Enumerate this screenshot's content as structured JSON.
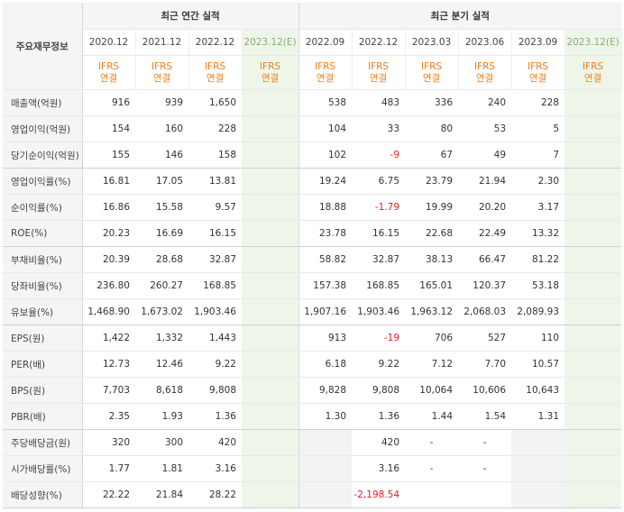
{
  "header": {
    "row_label": "주요재무정보",
    "annual_title": "최근 연간 실적",
    "quarterly_title": "최근 분기 실적",
    "annual_periods": [
      "2020.12",
      "2021.12",
      "2022.12",
      "2023.12(E)"
    ],
    "quarterly_periods": [
      "2022.09",
      "2022.12",
      "2023.03",
      "2023.06",
      "2023.09",
      "2023.12(E)"
    ],
    "ifrs_line1": "IFRS",
    "ifrs_line2": "연결"
  },
  "rows": [
    {
      "label": "매출액(억원)",
      "annual": [
        "916",
        "939",
        "1,650",
        ""
      ],
      "quarterly": [
        "538",
        "483",
        "336",
        "240",
        "228",
        ""
      ]
    },
    {
      "label": "영업이익(억원)",
      "annual": [
        "154",
        "160",
        "228",
        ""
      ],
      "quarterly": [
        "104",
        "33",
        "80",
        "53",
        "5",
        ""
      ]
    },
    {
      "label": "당기순이익(억원)",
      "annual": [
        "155",
        "146",
        "158",
        ""
      ],
      "quarterly": [
        "102",
        "-9",
        "67",
        "49",
        "7",
        ""
      ]
    },
    {
      "label": "영업이익률(%)",
      "annual": [
        "16.81",
        "17.05",
        "13.81",
        ""
      ],
      "quarterly": [
        "19.24",
        "6.75",
        "23.79",
        "21.94",
        "2.30",
        ""
      ]
    },
    {
      "label": "순이익률(%)",
      "annual": [
        "16.86",
        "15.58",
        "9.57",
        ""
      ],
      "quarterly": [
        "18.88",
        "-1.79",
        "19.99",
        "20.20",
        "3.17",
        ""
      ]
    },
    {
      "label": "ROE(%)",
      "annual": [
        "20.23",
        "16.69",
        "16.15",
        ""
      ],
      "quarterly": [
        "23.78",
        "16.15",
        "22.68",
        "22.49",
        "13.32",
        ""
      ]
    },
    {
      "label": "부채비율(%)",
      "annual": [
        "20.39",
        "28.68",
        "32.87",
        ""
      ],
      "quarterly": [
        "58.82",
        "32.87",
        "38.13",
        "66.47",
        "81.22",
        ""
      ]
    },
    {
      "label": "당좌비율(%)",
      "annual": [
        "236.80",
        "260.27",
        "168.85",
        ""
      ],
      "quarterly": [
        "157.38",
        "168.85",
        "165.01",
        "120.37",
        "53.18",
        ""
      ]
    },
    {
      "label": "유보율(%)",
      "annual": [
        "1,468.90",
        "1,673.02",
        "1,903.46",
        ""
      ],
      "quarterly": [
        "1,907.16",
        "1,903.46",
        "1,963.12",
        "2,068.03",
        "2,089.93",
        ""
      ]
    },
    {
      "label": "EPS(원)",
      "annual": [
        "1,422",
        "1,332",
        "1,443",
        ""
      ],
      "quarterly": [
        "913",
        "-19",
        "706",
        "527",
        "110",
        ""
      ]
    },
    {
      "label": "PER(배)",
      "annual": [
        "12.73",
        "12.46",
        "9.22",
        ""
      ],
      "quarterly": [
        "6.18",
        "9.22",
        "7.12",
        "7.70",
        "10.57",
        ""
      ]
    },
    {
      "label": "BPS(원)",
      "annual": [
        "7,703",
        "8,618",
        "9,808",
        ""
      ],
      "quarterly": [
        "9,828",
        "9,808",
        "10,064",
        "10,606",
        "10,643",
        ""
      ]
    },
    {
      "label": "PBR(배)",
      "annual": [
        "2.35",
        "1.93",
        "1.36",
        ""
      ],
      "quarterly": [
        "1.30",
        "1.36",
        "1.44",
        "1.54",
        "1.31",
        ""
      ]
    },
    {
      "label": "주당배당금(원)",
      "annual": [
        "320",
        "300",
        "420",
        ""
      ],
      "quarterly": [
        "",
        "420",
        "-",
        "-",
        "",
        ""
      ],
      "empty_q": [
        0,
        4
      ]
    },
    {
      "label": "시가배당률(%)",
      "annual": [
        "1.77",
        "1.81",
        "3.16",
        ""
      ],
      "quarterly": [
        "",
        "3.16",
        "-",
        "-",
        "",
        ""
      ],
      "empty_q": [
        0,
        4
      ]
    },
    {
      "label": "배당성향(%)",
      "annual": [
        "22.22",
        "21.84",
        "28.22",
        ""
      ],
      "quarterly": [
        "",
        "-2,198.54",
        "",
        "",
        "",
        ""
      ],
      "empty_q": [
        0,
        4
      ]
    }
  ],
  "group_ends": [
    2,
    5,
    8,
    12,
    15
  ],
  "colors": {
    "ifrs": "#f27c14",
    "negative": "#e02020",
    "estimate_bg": "#eef6ea",
    "label_bg": "#f5f5f5"
  }
}
